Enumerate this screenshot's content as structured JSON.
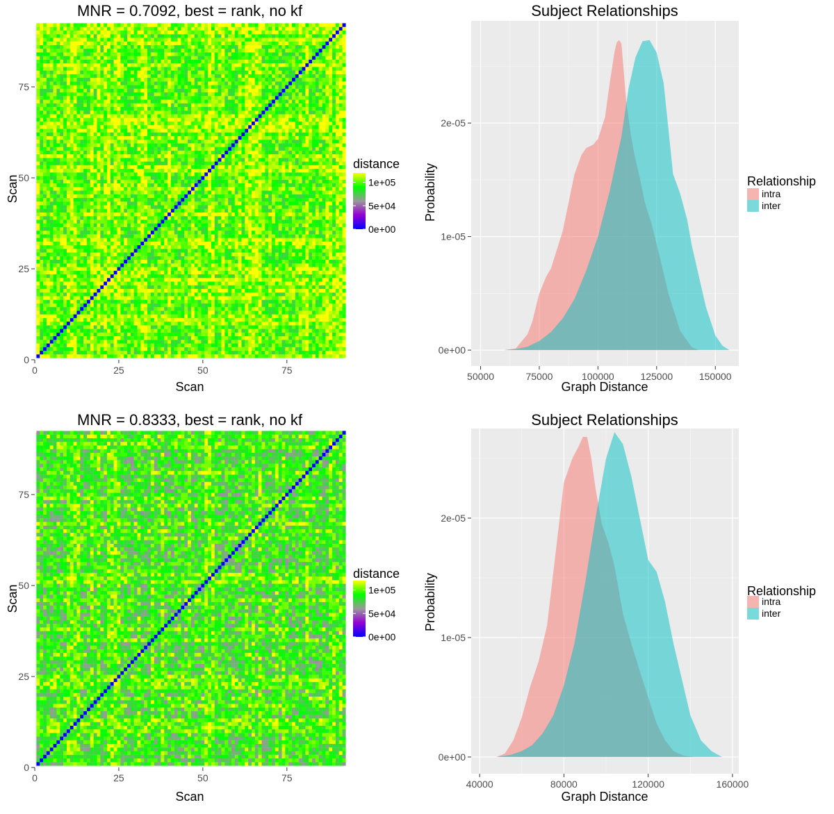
{
  "chart_data": [
    {
      "type": "heatmap",
      "title": "MNR = 0.7092, best = rank, no kf",
      "xlabel": "Scan",
      "ylabel": "Scan",
      "xlim": [
        0,
        92
      ],
      "ylim": [
        0,
        92
      ],
      "n": 92,
      "x_ticks": [
        0,
        25,
        50,
        75
      ],
      "y_ticks": [
        0,
        25,
        50,
        75
      ],
      "tick_labels": [
        "0",
        "25",
        "50",
        "75"
      ],
      "legend": {
        "title": "distance",
        "ticks": [
          "1e+05",
          "5e+04",
          "0e+00"
        ],
        "tick_values": [
          100000,
          50000,
          0
        ],
        "range": [
          0,
          120000
        ],
        "colors": [
          "#0000ff",
          "#9400d3",
          "#999999",
          "#00ff00",
          "#ffff00"
        ]
      },
      "bright_rows": [
        1,
        10,
        11,
        19,
        21,
        22,
        25,
        31,
        40,
        47,
        52,
        61,
        63,
        64,
        81,
        87,
        88,
        92
      ],
      "bright_cols": [
        11,
        12,
        17,
        24,
        32,
        33,
        53,
        56,
        64,
        65,
        66,
        67,
        90,
        91
      ],
      "cell_distribution": {
        "mean": 95000,
        "spread": 20000,
        "bright_boost": 18000,
        "diagonal": 0
      }
    },
    {
      "type": "area",
      "title": "Subject Relationships",
      "xlabel": "Graph Distance",
      "ylabel": "Probability",
      "xlim": [
        46000,
        160000
      ],
      "ylim": [
        -1.4e-06,
        2.9e-05
      ],
      "x_ticks": [
        50000,
        75000,
        100000,
        125000,
        150000
      ],
      "x_tick_labels": [
        "50000",
        "75000",
        "100000",
        "125000",
        "150000"
      ],
      "y_ticks": [
        0,
        1e-05,
        2e-05
      ],
      "y_tick_labels": [
        "0e+00",
        "1e-05",
        "2e-05"
      ],
      "legend": {
        "title": "Relationship",
        "position": "right"
      },
      "series": [
        {
          "name": "intra",
          "color": "#f8766d",
          "x": [
            60000,
            65000,
            70000,
            72000,
            75000,
            78000,
            80000,
            85000,
            88000,
            90000,
            93000,
            95000,
            98000,
            100000,
            103000,
            105000,
            107000,
            108000,
            109000,
            110000,
            111000,
            112000,
            114000,
            115000,
            116000,
            118000,
            120000,
            123000,
            126000,
            130000,
            135000,
            140000,
            143000
          ],
          "y": [
            0,
            1.5e-07,
            1.4e-06,
            2.5e-06,
            5e-06,
            6.5e-06,
            7.2e-06,
            1.05e-05,
            1.35e-05,
            1.55e-05,
            1.72e-05,
            1.78e-05,
            1.81e-05,
            1.86e-05,
            2.05e-05,
            2.35e-05,
            2.62e-05,
            2.71e-05,
            2.73e-05,
            2.7e-05,
            2.45e-05,
            2.2e-05,
            1.9e-05,
            1.78e-05,
            1.68e-05,
            1.5e-05,
            1.3e-05,
            1.1e-05,
            8.5e-06,
            5e-06,
            1.7e-06,
            2.5e-07,
            0
          ]
        },
        {
          "name": "inter",
          "color": "#00bfc4",
          "x": [
            60000,
            65000,
            70000,
            75000,
            80000,
            85000,
            90000,
            95000,
            100000,
            105000,
            110000,
            113000,
            116000,
            119000,
            122000,
            125000,
            128000,
            130000,
            132000,
            135000,
            138000,
            140000,
            143000,
            146000,
            150000,
            153000,
            156000
          ],
          "y": [
            0,
            1e-07,
            3e-07,
            8e-07,
            1.6e-06,
            2.8e-06,
            4.5e-06,
            7e-06,
            1e-05,
            1.4e-05,
            1.88e-05,
            2.3e-05,
            2.58e-05,
            2.72e-05,
            2.73e-05,
            2.62e-05,
            2.35e-05,
            1.95e-05,
            1.55e-05,
            1.38e-05,
            1.15e-05,
            9.2e-06,
            6.5e-06,
            3.8e-06,
            1.3e-06,
            4e-07,
            0
          ]
        }
      ]
    },
    {
      "type": "heatmap",
      "title": "MNR = 0.8333, best = rank, no kf",
      "xlabel": "Scan",
      "ylabel": "Scan",
      "xlim": [
        0,
        92
      ],
      "ylim": [
        0,
        92
      ],
      "n": 92,
      "x_ticks": [
        0,
        25,
        50,
        75
      ],
      "y_ticks": [
        0,
        25,
        50,
        75
      ],
      "tick_labels": [
        "0",
        "25",
        "50",
        "75"
      ],
      "legend": {
        "title": "distance",
        "ticks": [
          "1e+05",
          "5e+04",
          "0e+00"
        ],
        "tick_values": [
          100000,
          50000,
          0
        ],
        "range": [
          0,
          120000
        ],
        "colors": [
          "#0000ff",
          "#9400d3",
          "#999999",
          "#00ff00",
          "#ffff00"
        ]
      },
      "bright_rows": [
        10,
        12,
        13,
        19,
        22,
        23,
        31,
        38,
        52,
        53,
        65,
        72,
        88,
        91
      ],
      "bright_cols": [
        11,
        12,
        17,
        23,
        24,
        25,
        35,
        46,
        51,
        52,
        53,
        63,
        67,
        74,
        81,
        89
      ],
      "cell_distribution": {
        "mean": 82000,
        "spread": 24000,
        "bright_boost": 20000,
        "diagonal": 0
      }
    },
    {
      "type": "area",
      "title": "Subject Relationships",
      "xlabel": "Graph Distance",
      "ylabel": "Probability",
      "xlim": [
        36000,
        163000
      ],
      "ylim": [
        -1.4e-06,
        2.75e-05
      ],
      "x_ticks": [
        40000,
        80000,
        120000,
        160000
      ],
      "x_tick_labels": [
        "40000",
        "80000",
        "120000",
        "160000"
      ],
      "y_ticks": [
        0,
        1e-05,
        2e-05
      ],
      "y_tick_labels": [
        "0e+00",
        "1e-05",
        "2e-05"
      ],
      "legend": {
        "title": "Relationship",
        "position": "right"
      },
      "series": [
        {
          "name": "intra",
          "color": "#f8766d",
          "x": [
            48000,
            52000,
            56000,
            60000,
            64000,
            68000,
            72000,
            76000,
            80000,
            84000,
            87000,
            89000,
            91000,
            93000,
            95000,
            98000,
            101000,
            104000,
            108000,
            112000,
            116000,
            120000,
            124000,
            128000,
            132000,
            137000,
            142000
          ],
          "y": [
            0,
            3e-07,
            1.4e-06,
            3.3e-06,
            5.9e-06,
            8e-06,
            1.1e-05,
            1.7e-05,
            2.3e-05,
            2.5e-05,
            2.6e-05,
            2.68e-05,
            2.68e-05,
            2.5e-05,
            2.25e-05,
            1.95e-05,
            1.8e-05,
            1.6e-05,
            1.2e-05,
            9.5e-06,
            7.2e-06,
            5e-06,
            2.8e-06,
            1.4e-06,
            5e-07,
            1e-07,
            0
          ]
        },
        {
          "name": "inter",
          "color": "#00bfc4",
          "x": [
            48000,
            55000,
            60000,
            65000,
            70000,
            75000,
            80000,
            85000,
            90000,
            95000,
            100000,
            104000,
            108000,
            112000,
            116000,
            120000,
            124000,
            128000,
            132000,
            136000,
            140000,
            145000,
            150000,
            155000
          ],
          "y": [
            0,
            2e-07,
            5e-07,
            1e-06,
            2e-06,
            3.5e-06,
            6e-06,
            9.5e-06,
            1.45e-05,
            2e-05,
            2.5e-05,
            2.72e-05,
            2.62e-05,
            2.35e-05,
            2e-05,
            1.65e-05,
            1.55e-05,
            1.3e-05,
            9.5e-06,
            6.5e-06,
            3.5e-06,
            1.4e-06,
            5e-07,
            0
          ]
        }
      ]
    }
  ]
}
